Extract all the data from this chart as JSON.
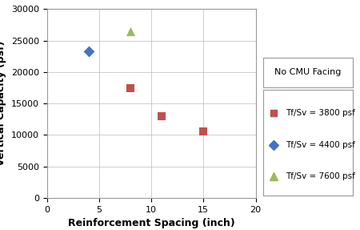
{
  "title": "",
  "xlabel": "Reinforcement Spacing (inch)",
  "ylabel": "Vertical Capacity (psf)",
  "xlim": [
    0,
    20
  ],
  "ylim": [
    0,
    30000
  ],
  "xticks": [
    0,
    5,
    10,
    15,
    20
  ],
  "yticks": [
    0,
    5000,
    10000,
    15000,
    20000,
    25000,
    30000
  ],
  "series": [
    {
      "label": "Tf/Sv = 3800 psf",
      "x": [
        8,
        11,
        15
      ],
      "y": [
        17500,
        13000,
        10500
      ],
      "color": "#C0504D",
      "marker": "s",
      "markersize": 7
    },
    {
      "label": "Tf/Sv = 4400 psf",
      "x": [
        4
      ],
      "y": [
        23300
      ],
      "color": "#4472C4",
      "marker": "D",
      "markersize": 7
    },
    {
      "label": "Tf/Sv = 7600 psf",
      "x": [
        8
      ],
      "y": [
        26500
      ],
      "color": "#9BBB59",
      "marker": "^",
      "markersize": 8
    }
  ],
  "legend_title": "No CMU Facing",
  "legend_title_fontsize": 8,
  "legend_fontsize": 7.5,
  "axis_label_fontsize": 9,
  "tick_fontsize": 8,
  "background_color": "#FFFFFF",
  "grid_color": "#BBBBBB"
}
